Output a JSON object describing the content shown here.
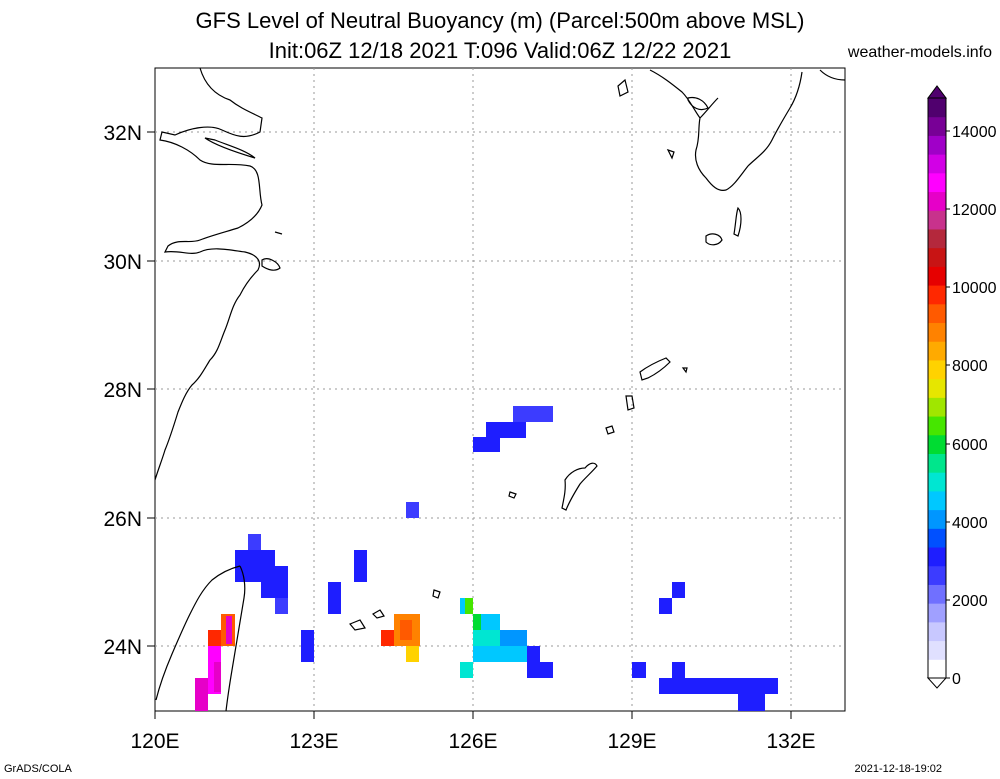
{
  "title": {
    "line1": "GFS Level of Neutral Buoyancy (m) (Parcel:500m above MSL)",
    "line2": "Init:06Z 12/18 2021 T:096 Valid:06Z 12/22 2021",
    "site": "weather-models.info"
  },
  "footer": {
    "left": "GrADS/COLA",
    "right": "2021-12-18-19:02"
  },
  "map": {
    "lon_labels": [
      "120E",
      "123E",
      "126E",
      "129E",
      "132E"
    ],
    "lat_labels": [
      "32N",
      "30N",
      "28N",
      "26N",
      "24N"
    ],
    "lon_range": [
      120,
      133
    ],
    "lat_range": [
      23,
      33
    ]
  },
  "colorbar": {
    "labels": [
      "0",
      "2000",
      "4000",
      "6000",
      "8000",
      "10000",
      "12000",
      "14000"
    ],
    "colors": [
      "#ffffff",
      "#e0e0ff",
      "#c8c8ff",
      "#a0a0ff",
      "#7070ff",
      "#3c3cff",
      "#1e1eff",
      "#0050ff",
      "#0096ff",
      "#00c8ff",
      "#00e6d2",
      "#00e68c",
      "#00dc32",
      "#46e600",
      "#a0e600",
      "#e6e600",
      "#ffd200",
      "#ffaa00",
      "#ff8200",
      "#ff5a00",
      "#ff2800",
      "#e60000",
      "#c81414",
      "#b4283c",
      "#c8328c",
      "#e600c8",
      "#ff00ff",
      "#d200e6",
      "#a000c8",
      "#780096",
      "#50006e"
    ]
  },
  "chart_data": {
    "type": "heatmap",
    "title": "GFS Level of Neutral Buoyancy (m) (Parcel:500m above MSL)",
    "units": "m",
    "cells": [
      {
        "lon": 126.0,
        "lat": 27.3,
        "value": 1500
      },
      {
        "lon": 126.5,
        "lat": 27.4,
        "value": 1500
      },
      {
        "lon": 126.9,
        "lat": 27.6,
        "value": 1600
      },
      {
        "lon": 127.2,
        "lat": 27.6,
        "value": 1800
      },
      {
        "lon": 124.8,
        "lat": 26.1,
        "value": 1800
      },
      {
        "lon": 121.9,
        "lat": 25.3,
        "value": 2000
      },
      {
        "lon": 122.2,
        "lat": 25.0,
        "value": 1500
      },
      {
        "lon": 123.3,
        "lat": 24.8,
        "value": 1500
      },
      {
        "lon": 123.8,
        "lat": 25.2,
        "value": 1800
      },
      {
        "lon": 122.9,
        "lat": 24.0,
        "value": 1500
      },
      {
        "lon": 121.3,
        "lat": 24.3,
        "value": 9000
      },
      {
        "lon": 121.1,
        "lat": 23.9,
        "value": 13500
      },
      {
        "lon": 120.9,
        "lat": 23.2,
        "value": 13800
      },
      {
        "lon": 124.6,
        "lat": 24.2,
        "value": 9000
      },
      {
        "lon": 124.9,
        "lat": 24.0,
        "value": 8000
      },
      {
        "lon": 126.2,
        "lat": 24.1,
        "value": 4500
      },
      {
        "lon": 126.7,
        "lat": 24.0,
        "value": 3500
      },
      {
        "lon": 127.2,
        "lat": 23.8,
        "value": 2000
      },
      {
        "lon": 125.9,
        "lat": 23.6,
        "value": 4000
      },
      {
        "lon": 129.1,
        "lat": 23.6,
        "value": 1800
      },
      {
        "lon": 129.8,
        "lat": 24.8,
        "value": 1800
      },
      {
        "lon": 130.5,
        "lat": 23.4,
        "value": 1500
      },
      {
        "lon": 131.2,
        "lat": 23.3,
        "value": 1500
      }
    ]
  }
}
